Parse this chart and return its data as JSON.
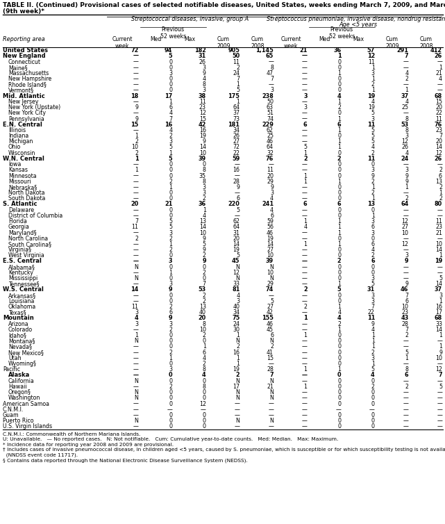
{
  "title_line1": "TABLE II. (Continued) Provisional cases of selected notifiable diseases, United States, weeks ending March 7, 2009, and March 1, 2008",
  "title_line2": "(9th week)*",
  "col_header_1": "Streptococcal diseases, invasive, group A",
  "col_header_2a": "Streptococcus pneumoniae, invasive disease, nondrug resistant†",
  "col_header_2b": "Age <5 years",
  "prev_label": "Previous",
  "prev_label2": "52 weeks",
  "reporting_area_label": "Reporting area",
  "rows": [
    [
      "United States",
      "72",
      "94",
      "182",
      "905",
      "1,145",
      "21",
      "36",
      "57",
      "291",
      "412"
    ],
    [
      "New England",
      "—",
      "5",
      "31",
      "50",
      "65",
      "—",
      "1",
      "12",
      "7",
      "26"
    ],
    [
      "Connecticut",
      "—",
      "0",
      "26",
      "11",
      "—",
      "—",
      "0",
      "11",
      "—",
      "—"
    ],
    [
      "Maine§",
      "—",
      "0",
      "3",
      "2",
      "8",
      "—",
      "0",
      "1",
      "—",
      "1"
    ],
    [
      "Massachusetts",
      "—",
      "3",
      "9",
      "24",
      "47",
      "—",
      "1",
      "3",
      "4",
      "21"
    ],
    [
      "New Hampshire",
      "—",
      "0",
      "4",
      "7",
      "7",
      "—",
      "0",
      "1",
      "2",
      "4"
    ],
    [
      "Rhode Island§",
      "—",
      "0",
      "8",
      "1",
      "—",
      "—",
      "0",
      "2",
      "—",
      "—"
    ],
    [
      "Vermont§",
      "—",
      "0",
      "3",
      "5",
      "3",
      "—",
      "0",
      "1",
      "1",
      "—"
    ],
    [
      "Mid. Atlantic",
      "18",
      "17",
      "38",
      "175",
      "238",
      "3",
      "4",
      "19",
      "37",
      "68"
    ],
    [
      "New Jersey",
      "—",
      "1",
      "11",
      "1",
      "50",
      "—",
      "1",
      "4",
      "4",
      "15"
    ],
    [
      "New York (Upstate)",
      "9",
      "6",
      "23",
      "64",
      "63",
      "3",
      "2",
      "19",
      "25",
      "20"
    ],
    [
      "New York City",
      "—",
      "4",
      "12",
      "37",
      "51",
      "—",
      "0",
      "5",
      "—",
      "22"
    ],
    [
      "Pennsylvania",
      "9",
      "7",
      "15",
      "73",
      "74",
      "—",
      "1",
      "3",
      "8",
      "11"
    ],
    [
      "E.N. Central",
      "15",
      "16",
      "42",
      "181",
      "229",
      "6",
      "6",
      "11",
      "53",
      "76"
    ],
    [
      "Illinois",
      "—",
      "4",
      "16",
      "34",
      "62",
      "—",
      "1",
      "5",
      "8",
      "23"
    ],
    [
      "Indiana",
      "1",
      "2",
      "19",
      "26",
      "25",
      "—",
      "0",
      "5",
      "3",
      "7"
    ],
    [
      "Michigan",
      "2",
      "3",
      "9",
      "27",
      "46",
      "—",
      "1",
      "5",
      "12",
      "20"
    ],
    [
      "Ohio",
      "10",
      "5",
      "14",
      "72",
      "64",
      "5",
      "1",
      "4",
      "26",
      "14"
    ],
    [
      "Wisconsin",
      "2",
      "1",
      "10",
      "22",
      "32",
      "1",
      "0",
      "2",
      "4",
      "12"
    ],
    [
      "W.N. Central",
      "1",
      "5",
      "39",
      "59",
      "76",
      "2",
      "2",
      "11",
      "24",
      "26"
    ],
    [
      "Iowa",
      "—",
      "0",
      "0",
      "—",
      "—",
      "—",
      "0",
      "0",
      "—",
      "—"
    ],
    [
      "Kansas",
      "1",
      "0",
      "8",
      "16",
      "11",
      "—",
      "0",
      "3",
      "3",
      "2"
    ],
    [
      "Minnesota",
      "—",
      "0",
      "35",
      "—",
      "20",
      "1",
      "0",
      "9",
      "9",
      "6"
    ],
    [
      "Missouri",
      "—",
      "2",
      "8",
      "28",
      "29",
      "1",
      "1",
      "2",
      "9",
      "13"
    ],
    [
      "Nebraska§",
      "—",
      "1",
      "3",
      "9",
      "9",
      "—",
      "0",
      "1",
      "1",
      "2"
    ],
    [
      "North Dakota",
      "—",
      "0",
      "3",
      "—",
      "3",
      "—",
      "0",
      "2",
      "—",
      "1"
    ],
    [
      "South Dakota",
      "—",
      "0",
      "2",
      "6",
      "4",
      "—",
      "0",
      "1",
      "2",
      "2"
    ],
    [
      "S. Atlantic",
      "20",
      "21",
      "36",
      "220",
      "241",
      "6",
      "6",
      "13",
      "64",
      "80"
    ],
    [
      "Delaware",
      "—",
      "0",
      "1",
      "5",
      "4",
      "—",
      "0",
      "0",
      "—",
      "—"
    ],
    [
      "District of Columbia",
      "—",
      "0",
      "4",
      "—",
      "6",
      "—",
      "0",
      "1",
      "—",
      "—"
    ],
    [
      "Florida",
      "7",
      "5",
      "13",
      "62",
      "59",
      "1",
      "1",
      "3",
      "12",
      "11"
    ],
    [
      "Georgia",
      "11",
      "5",
      "14",
      "64",
      "56",
      "4",
      "1",
      "6",
      "27",
      "23"
    ],
    [
      "Maryland§",
      "—",
      "3",
      "10",
      "31",
      "46",
      "—",
      "1",
      "3",
      "10",
      "21"
    ],
    [
      "North Carolina",
      "2",
      "2",
      "9",
      "20",
      "19",
      "—",
      "0",
      "0",
      "—",
      "—"
    ],
    [
      "South Carolina§",
      "—",
      "1",
      "5",
      "14",
      "14",
      "1",
      "1",
      "6",
      "12",
      "10"
    ],
    [
      "Virginia§",
      "—",
      "2",
      "9",
      "19",
      "27",
      "—",
      "0",
      "4",
      "—",
      "14"
    ],
    [
      "West Virginia",
      "—",
      "0",
      "2",
      "5",
      "10",
      "—",
      "0",
      "2",
      "3",
      "1"
    ],
    [
      "E.S. Central",
      "—",
      "3",
      "9",
      "45",
      "39",
      "—",
      "2",
      "6",
      "9",
      "19"
    ],
    [
      "Alabama§",
      "N",
      "0",
      "0",
      "N",
      "N",
      "—",
      "0",
      "0",
      "—",
      "—"
    ],
    [
      "Kentucky",
      "—",
      "1",
      "2",
      "12",
      "10",
      "—",
      "0",
      "0",
      "—",
      "—"
    ],
    [
      "Mississippi",
      "N",
      "0",
      "0",
      "N",
      "N",
      "—",
      "0",
      "3",
      "—",
      "5"
    ],
    [
      "Tennessee§",
      "—",
      "3",
      "7",
      "33",
      "29",
      "—",
      "1",
      "5",
      "9",
      "14"
    ],
    [
      "W.S. Central",
      "14",
      "9",
      "53",
      "81",
      "74",
      "2",
      "5",
      "31",
      "46",
      "37"
    ],
    [
      "Arkansas§",
      "—",
      "0",
      "2",
      "4",
      "—",
      "—",
      "0",
      "3",
      "7",
      "3"
    ],
    [
      "Louisiana",
      "—",
      "0",
      "2",
      "3",
      "5",
      "—",
      "0",
      "3",
      "6",
      "1"
    ],
    [
      "Oklahoma",
      "11",
      "2",
      "13",
      "40",
      "27",
      "2",
      "1",
      "7",
      "10",
      "16"
    ],
    [
      "Texas§",
      "3",
      "6",
      "40",
      "34",
      "42",
      "—",
      "4",
      "22",
      "23",
      "17"
    ],
    [
      "Mountain",
      "4",
      "9",
      "20",
      "75",
      "155",
      "1",
      "4",
      "11",
      "43",
      "68"
    ],
    [
      "Arizona",
      "3",
      "3",
      "8",
      "24",
      "46",
      "—",
      "2",
      "9",
      "28",
      "33"
    ],
    [
      "Colorado",
      "—",
      "2",
      "10",
      "30",
      "45",
      "—",
      "1",
      "4",
      "7",
      "14"
    ],
    [
      "Idaho§",
      "1",
      "0",
      "2",
      "1",
      "6",
      "1",
      "0",
      "1",
      "2",
      "1"
    ],
    [
      "Montana§",
      "N",
      "0",
      "0",
      "N",
      "N",
      "—",
      "0",
      "1",
      "—",
      "—"
    ],
    [
      "Nevada§",
      "—",
      "0",
      "1",
      "2",
      "2",
      "—",
      "0",
      "1",
      "—",
      "1"
    ],
    [
      "New Mexico§",
      "—",
      "2",
      "6",
      "16",
      "41",
      "—",
      "0",
      "2",
      "5",
      "9"
    ],
    [
      "Utah",
      "—",
      "1",
      "4",
      "1",
      "15",
      "—",
      "0",
      "3",
      "1",
      "10"
    ],
    [
      "Wyoming§",
      "—",
      "0",
      "2",
      "1",
      "—",
      "—",
      "0",
      "1",
      "—",
      "—"
    ],
    [
      "Pacific",
      "—",
      "3",
      "8",
      "19",
      "28",
      "1",
      "1",
      "5",
      "8",
      "12"
    ],
    [
      "Alaska",
      "—",
      "0",
      "4",
      "2",
      "7",
      "—",
      "0",
      "4",
      "6",
      "7"
    ],
    [
      "California",
      "N",
      "0",
      "0",
      "N",
      "N",
      "—",
      "0",
      "0",
      "—",
      "—"
    ],
    [
      "Hawaii",
      "—",
      "2",
      "8",
      "17",
      "21",
      "1",
      "0",
      "2",
      "2",
      "5"
    ],
    [
      "Oregon§",
      "N",
      "0",
      "0",
      "N",
      "N",
      "—",
      "0",
      "0",
      "—",
      "—"
    ],
    [
      "Washington",
      "N",
      "0",
      "0",
      "N",
      "N",
      "—",
      "0",
      "0",
      "—",
      "—"
    ],
    [
      "American Samoa",
      "—",
      "0",
      "12",
      "—",
      "—",
      "—",
      "0",
      "0",
      "—",
      "—"
    ],
    [
      "C.N.M.I.",
      "—",
      "—",
      "—",
      "—",
      "—",
      "—",
      "—",
      "—",
      "—",
      "—"
    ],
    [
      "Guam",
      "—",
      "0",
      "0",
      "—",
      "—",
      "—",
      "0",
      "0",
      "—",
      "—"
    ],
    [
      "Puerto Rico",
      "N",
      "0",
      "0",
      "N",
      "N",
      "—",
      "0",
      "0",
      "—",
      "—"
    ],
    [
      "U.S. Virgin Islands",
      "—",
      "0",
      "0",
      "—",
      "—",
      "—",
      "0",
      "0",
      "—",
      "—"
    ]
  ],
  "bold_rows": [
    0,
    1,
    8,
    13,
    19,
    27,
    37,
    42,
    47,
    57
  ],
  "indent_rows": [
    2,
    3,
    4,
    5,
    6,
    7,
    9,
    10,
    11,
    12,
    14,
    15,
    16,
    17,
    18,
    20,
    21,
    22,
    23,
    24,
    25,
    26,
    28,
    29,
    30,
    31,
    32,
    33,
    34,
    35,
    36,
    38,
    39,
    40,
    41,
    43,
    44,
    45,
    46,
    48,
    49,
    50,
    51,
    52,
    53,
    54,
    55,
    57,
    58,
    59,
    60,
    61
  ],
  "footnotes": [
    "C.N.M.I.: Commonwealth of Northern Mariana Islands.",
    "U: Unavailable.   — No reported cases.   N: Not notifiable.   Cum: Cumulative year-to-date counts.   Med: Median.   Max: Maximum.",
    "* Incidence data for reporting year 2008 and 2009 are provisional.",
    "† Includes cases of invasive pneumococcal disease, in children aged <5 years, caused by S. pneumoniae, which is susceptible or for which susceptibility testing is not available",
    "  (NNDSS event code 11717).",
    "§ Contains data reported through the National Electronic Disease Surveillance System (NEDSS)."
  ],
  "bg_color": "#ffffff",
  "text_color": "#000000",
  "title_fs": 6.5,
  "header_fs": 5.9,
  "data_fs": 5.7,
  "footnote_fs": 5.3
}
